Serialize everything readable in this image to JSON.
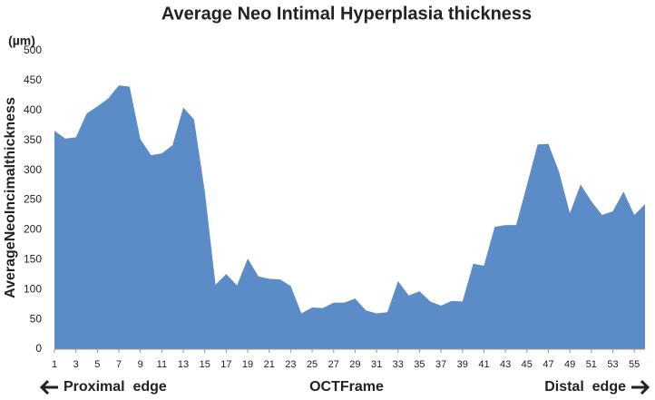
{
  "chart_data": {
    "type": "area",
    "title": "Average Neo Intimal Hyperplasia thickness",
    "y_unit": "(µm)",
    "y_label": "AverageNeoIncimalthickness",
    "x_label": "OCTFrame",
    "annotations": [
      "Proximal  edge",
      "Distal  edge"
    ],
    "x": [
      1,
      2,
      3,
      4,
      5,
      6,
      7,
      8,
      9,
      10,
      11,
      12,
      13,
      14,
      15,
      16,
      17,
      18,
      19,
      20,
      21,
      22,
      23,
      24,
      25,
      26,
      27,
      28,
      29,
      30,
      31,
      32,
      33,
      34,
      35,
      36,
      37,
      38,
      39,
      40,
      41,
      42,
      43,
      44,
      45,
      46,
      47,
      48,
      49,
      50,
      51,
      52,
      53,
      54,
      55,
      56
    ],
    "values": [
      366,
      353,
      355,
      395,
      407,
      420,
      442,
      440,
      352,
      325,
      328,
      342,
      405,
      385,
      265,
      108,
      126,
      107,
      152,
      122,
      118,
      117,
      106,
      60,
      70,
      69,
      78,
      78,
      85,
      65,
      60,
      62,
      114,
      90,
      97,
      80,
      73,
      81,
      80,
      143,
      140,
      205,
      208,
      208,
      275,
      343,
      344,
      297,
      228,
      276,
      248,
      225,
      231,
      264,
      225,
      243
    ],
    "color": "#5b8cc8",
    "xlim": [
      1,
      56
    ],
    "xticks": [
      1,
      3,
      5,
      7,
      9,
      11,
      13,
      15,
      17,
      19,
      21,
      23,
      25,
      27,
      29,
      31,
      33,
      35,
      37,
      39,
      41,
      43,
      45,
      47,
      49,
      51,
      53,
      55
    ],
    "ylim": [
      0,
      500
    ],
    "yticks": [
      0,
      50,
      100,
      150,
      200,
      250,
      300,
      350,
      400,
      450,
      500
    ]
  }
}
